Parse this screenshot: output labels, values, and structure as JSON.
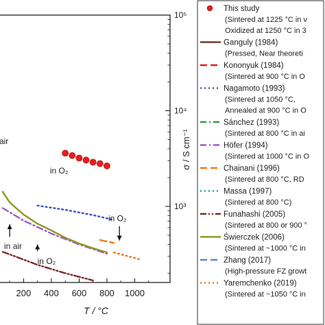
{
  "chart_data": {
    "type": "line",
    "xlabel": "T / °C",
    "ylabel": "σ / S cm⁻¹",
    "x_ticks": [
      200,
      400,
      600,
      800,
      1000
    ],
    "y_ticks": [
      {
        "value": 100000,
        "label": "10⁵"
      },
      {
        "value": 10000,
        "label": "10⁴"
      },
      {
        "value": 1000,
        "label": "10³"
      }
    ],
    "y_scale": "log",
    "xlim": [
      50,
      1100
    ],
    "ylim": [
      160,
      100000
    ],
    "annotations": [
      {
        "text": "in O₂",
        "x": 390,
        "y": 2200
      },
      {
        "text": "air",
        "x": 25,
        "y": 4500
      },
      {
        "text": "in O₂",
        "x": 810,
        "y": 700
      },
      {
        "text": "in air",
        "x": 60,
        "y": 360
      },
      {
        "text": "in O₂",
        "x": 300,
        "y": 250
      }
    ],
    "series": [
      {
        "name": "This study",
        "note_lines": [
          "(Sintered at 1225 °C in v",
          "Oxidized at 1250 °C in 3"
        ],
        "color": "#e41e20",
        "style": "marker",
        "x": [
          500,
          550,
          600,
          650,
          700,
          750,
          800
        ],
        "y": [
          3600,
          3400,
          3200,
          3050,
          2900,
          2800,
          2650
        ]
      },
      {
        "name": "Ganguly (1984)",
        "note_lines": [
          "(Pressed, Near theoreti"
        ],
        "color": "#6b3a2e",
        "style": "solid",
        "x": [],
        "y": []
      },
      {
        "name": "Kononyuk (1984)",
        "note_lines": [
          "(Sintered at 900 °C in O"
        ],
        "color": "#e41e20",
        "style": "dash",
        "x": [],
        "y": []
      },
      {
        "name": "Nagamoto (1993)",
        "note_lines": [
          "(Sintered at 1050 °C,",
          "Annealed at 900 °C in O"
        ],
        "color": "#3b50c8",
        "style": "dot",
        "x": [
          300,
          500,
          700,
          850
        ],
        "y": [
          1020,
          920,
          810,
          720
        ]
      },
      {
        "name": "Sánchez (1993)",
        "note_lines": [
          "(Sintered at 800 °C in ai"
        ],
        "color": "#2f9e44",
        "style": "dashdot",
        "x": [],
        "y": []
      },
      {
        "name": "Höfer (1994)",
        "note_lines": [
          "(Sintered at 1000 °C in O"
        ],
        "color": "#a05ac8",
        "style": "dashdot",
        "x": [
          50,
          200,
          400,
          600,
          800
        ],
        "y": [
          960,
          710,
          520,
          400,
          320
        ]
      },
      {
        "name": "Chainani (1996)",
        "note_lines": [
          "(Sintered at 800 °C, RD"
        ],
        "color": "#f07c1a",
        "style": "dash",
        "x": [
          750,
          850
        ],
        "y": [
          445,
          415
        ]
      },
      {
        "name": "Massa (1997)",
        "note_lines": [
          "(Sintered at 800 °C)"
        ],
        "color": "#1aa6a6",
        "style": "dot",
        "x": [],
        "y": []
      },
      {
        "name": "Funahashi (2005)",
        "note_lines": [
          "(Sintered at 800 or 900 °"
        ],
        "color": "#7a2b2b",
        "style": "dashdotdot",
        "x": [
          50,
          300,
          500,
          700
        ],
        "y": [
          335,
          245,
          200,
          168
        ]
      },
      {
        "name": "Świerczek (2006)",
        "note_lines": [
          "(Sintered at ~1000 °C in"
        ],
        "color": "#8b9a1e",
        "style": "solid",
        "x": [
          50,
          100,
          200,
          300,
          400,
          500,
          600,
          700,
          800
        ],
        "y": [
          1420,
          1100,
          820,
          660,
          560,
          470,
          410,
          365,
          330
        ]
      },
      {
        "name": "Zhang (2017)",
        "note_lines": [
          "(High-pressure FZ growt"
        ],
        "color": "#5b87c8",
        "style": "dash",
        "x": [],
        "y": []
      },
      {
        "name": "Yaremchenko (2019)",
        "note_lines": [
          "(Sintered at ~1050 °C in"
        ],
        "color": "#f07c1a",
        "style": "dot",
        "x": [
          850,
          1050
        ],
        "y": [
          330,
          275
        ]
      }
    ]
  }
}
